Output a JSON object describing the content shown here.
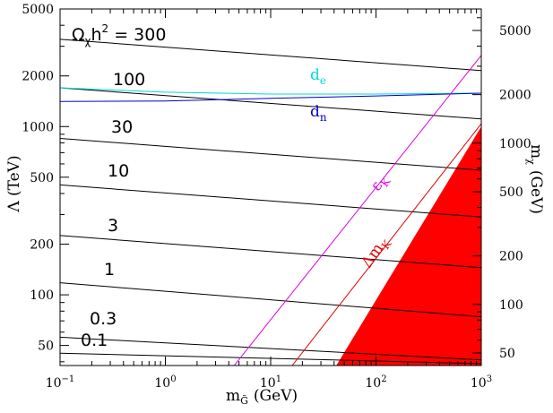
{
  "chart_data": {
    "type": "line",
    "xlabel": "m",
    "xlabel_sub": "G̃",
    "xlabel_unit": "(GeV)",
    "xscale": "log",
    "xlim": [
      0.1,
      1000
    ],
    "x_ticks": [
      {
        "value": 0.1,
        "base": "10",
        "exp": "−1"
      },
      {
        "value": 1,
        "base": "10",
        "exp": "0"
      },
      {
        "value": 10,
        "base": "10",
        "exp": "1"
      },
      {
        "value": 100,
        "base": "10",
        "exp": "2"
      },
      {
        "value": 1000,
        "base": "10",
        "exp": "3"
      }
    ],
    "ylabel_left": "Λ (TeV)",
    "yscale_left": "log",
    "ylim_left": [
      38,
      5000
    ],
    "y_ticks_left": [
      {
        "value": 50,
        "label": "50"
      },
      {
        "value": 100,
        "label": "100"
      },
      {
        "value": 200,
        "label": "200"
      },
      {
        "value": 500,
        "label": "500"
      },
      {
        "value": 1000,
        "label": "1000"
      },
      {
        "value": 2000,
        "label": "2000"
      },
      {
        "value": 5000,
        "label": "5000"
      }
    ],
    "ylabel_right": "m",
    "ylabel_right_sub": "χ",
    "ylabel_right_unit": "(GeV)",
    "y_ticks_right": [
      {
        "value": 5000,
        "label": "5000"
      },
      {
        "value": 2000,
        "label": "2000"
      },
      {
        "value": 1000,
        "label": "1000"
      },
      {
        "value": 500,
        "label": "500"
      },
      {
        "value": 200,
        "label": "200"
      },
      {
        "value": 100,
        "label": "100"
      },
      {
        "value": 50,
        "label": "50"
      }
    ],
    "relic_prefix": "Ω",
    "relic_sub": "χ",
    "relic_mid": "h",
    "relic_sup": "2",
    "relic_suffix": " = ",
    "series": [
      {
        "label": "300",
        "color": "#000000",
        "x": [
          0.1,
          1000
        ],
        "y": [
          3300,
          2150
        ]
      },
      {
        "label": "100",
        "color": "#000000",
        "x": [
          0.1,
          1000
        ],
        "y": [
          1700,
          1110
        ]
      },
      {
        "label": "30",
        "color": "#000000",
        "x": [
          0.1,
          1000
        ],
        "y": [
          850,
          550
        ]
      },
      {
        "label": "10",
        "color": "#000000",
        "x": [
          0.1,
          1000
        ],
        "y": [
          450,
          290
        ]
      },
      {
        "label": "3",
        "color": "#000000",
        "x": [
          0.1,
          1000
        ],
        "y": [
          225,
          145
        ]
      },
      {
        "label": "1",
        "color": "#000000",
        "x": [
          0.1,
          1000
        ],
        "y": [
          118,
          74
        ]
      },
      {
        "label": "0.3",
        "color": "#000000",
        "x": [
          0.1,
          1000
        ],
        "y": [
          56,
          41
        ]
      },
      {
        "label": "0.1",
        "color": "#000000",
        "x": [
          0.1,
          1000
        ],
        "y": [
          45,
          39
        ]
      },
      {
        "label": "d",
        "label_sub": "e",
        "color": "#00d8d8",
        "x": [
          0.1,
          1,
          10,
          100,
          1000
        ],
        "y": [
          1700,
          1600,
          1560,
          1560,
          1580
        ]
      },
      {
        "label": "d",
        "label_sub": "n",
        "color": "#0000cc",
        "x": [
          0.1,
          1,
          10,
          100,
          1000
        ],
        "y": [
          1410,
          1420,
          1470,
          1520,
          1580
        ]
      },
      {
        "label": "ε",
        "label_sub": "K",
        "color": "#e000e0",
        "x": [
          4.5,
          1000
        ],
        "y": [
          38,
          2650
        ]
      },
      {
        "label": "Δm",
        "label_sub": "K",
        "color": "#e00000",
        "x": [
          16,
          1000
        ],
        "y": [
          38,
          1040
        ]
      }
    ],
    "excluded_region": {
      "color": "#ff0000",
      "x": [
        42,
        1000,
        1000
      ],
      "y": [
        38,
        1000,
        38
      ]
    }
  }
}
